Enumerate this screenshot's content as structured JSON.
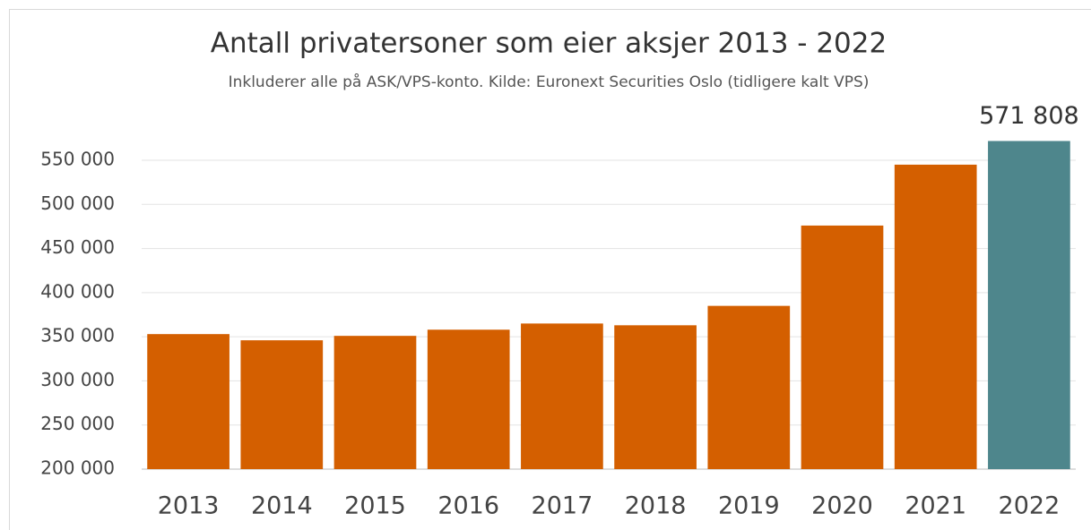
{
  "chart_data": {
    "type": "bar",
    "title": "Antall privatersoner som eier aksjer 2013 - 2022",
    "subtitle": "Inkluderer alle på ASK/VPS-konto. Kilde: Euronext Securities Oslo (tidligere kalt VPS)",
    "categories": [
      "2013",
      "2014",
      "2015",
      "2016",
      "2017",
      "2018",
      "2019",
      "2020",
      "2021",
      "2022"
    ],
    "values": [
      353000,
      346000,
      351000,
      358000,
      365000,
      363000,
      385000,
      476000,
      545000,
      571808
    ],
    "value_labels": [
      null,
      null,
      null,
      null,
      null,
      null,
      null,
      null,
      null,
      "571 808"
    ],
    "colors": [
      "#d45f00",
      "#d45f00",
      "#d45f00",
      "#d45f00",
      "#d45f00",
      "#d45f00",
      "#d45f00",
      "#d45f00",
      "#d45f00",
      "#4e868c"
    ],
    "ylim": [
      200000,
      550000
    ],
    "yticks": [
      {
        "value": 200000,
        "label": "200 000"
      },
      {
        "value": 250000,
        "label": "250 000"
      },
      {
        "value": 300000,
        "label": "300 000"
      },
      {
        "value": 350000,
        "label": "350 000"
      },
      {
        "value": 400000,
        "label": "400 000"
      },
      {
        "value": 450000,
        "label": "450 000"
      },
      {
        "value": 500000,
        "label": "500 000"
      },
      {
        "value": 550000,
        "label": "550 000"
      }
    ],
    "grid": true
  }
}
